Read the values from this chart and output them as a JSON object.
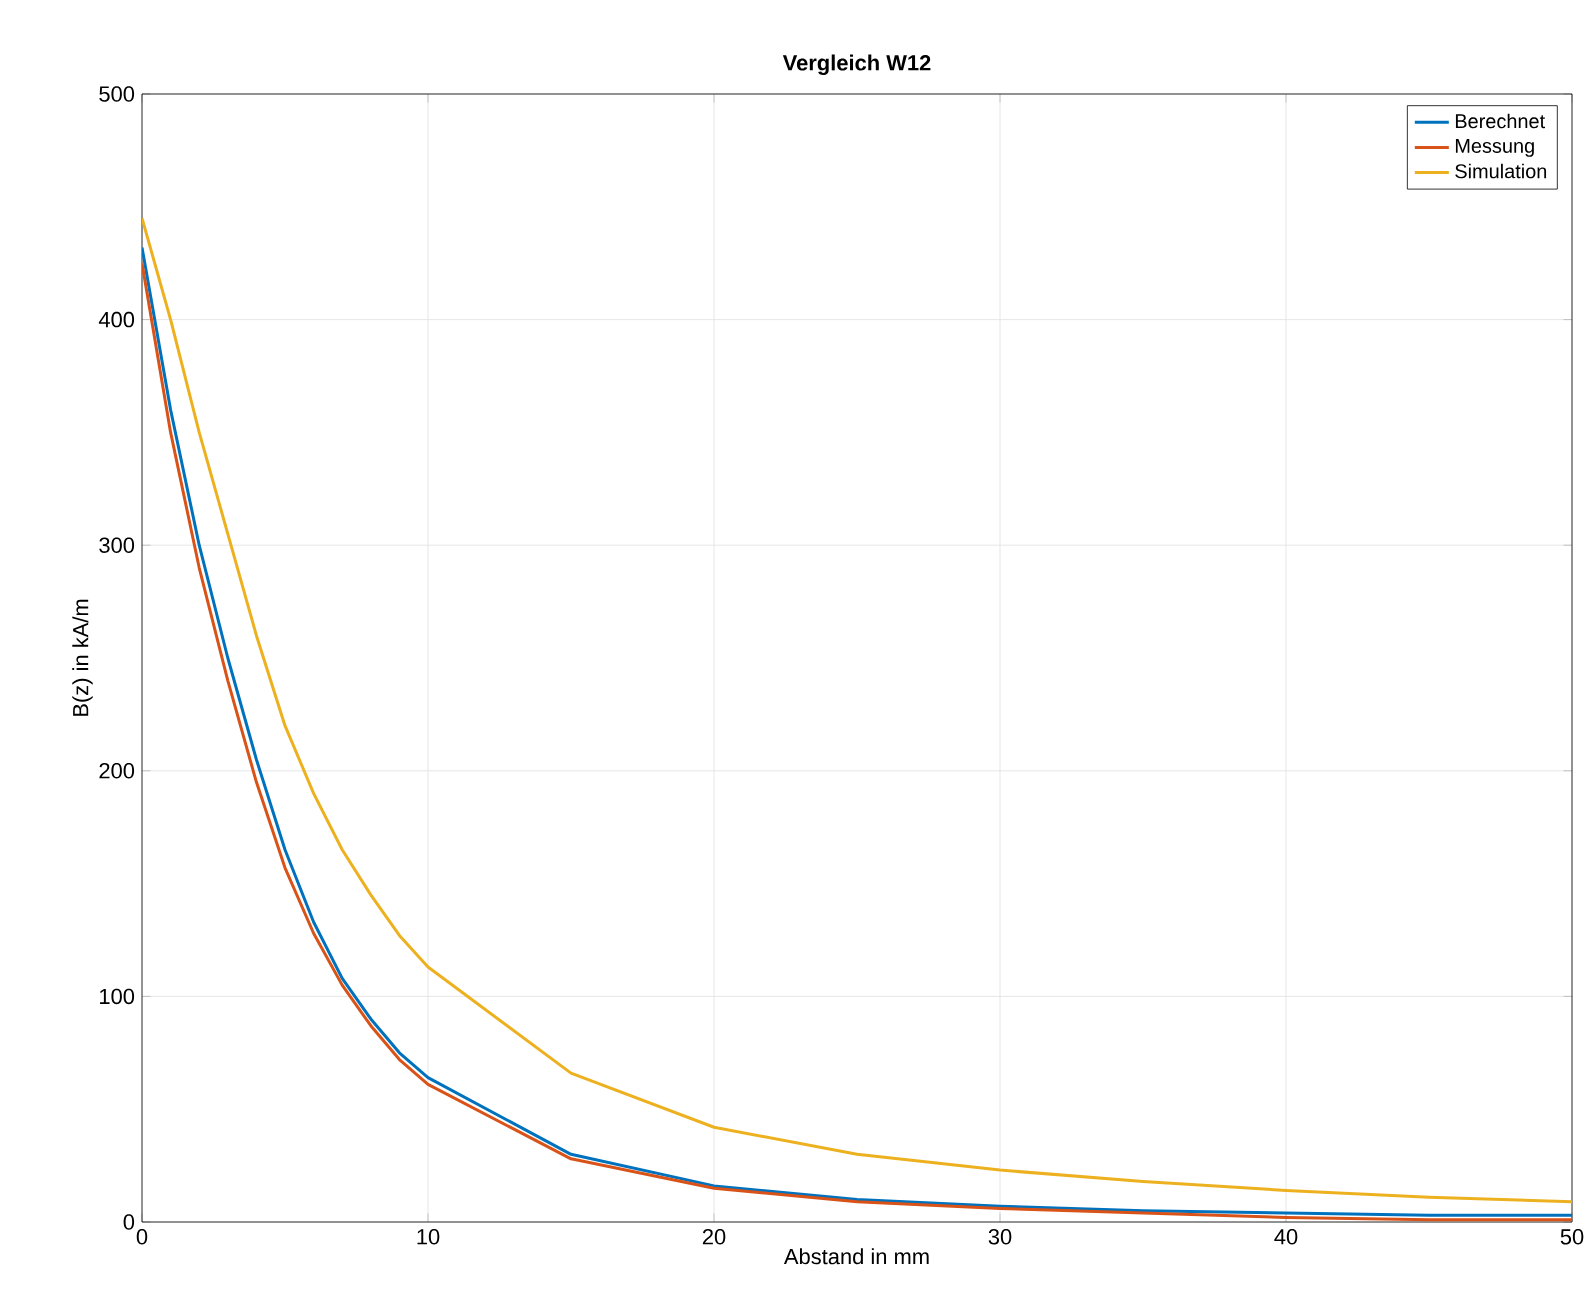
{
  "chart_data": {
    "type": "line",
    "title": "Vergleich W12",
    "xlabel": "Abstand in mm",
    "ylabel": "B(z) in kA/m",
    "x": [
      0,
      1,
      2,
      3,
      4,
      5,
      6,
      7,
      8,
      9,
      10,
      15,
      20,
      25,
      30,
      35,
      40,
      45,
      50
    ],
    "series": [
      {
        "name": "Berechnet",
        "color": "#0072bd",
        "values": [
          432,
          360,
          300,
          250,
          205,
          165,
          133,
          108,
          90,
          75,
          64,
          30,
          16,
          10,
          7,
          5,
          4,
          3,
          3
        ]
      },
      {
        "name": "Messung",
        "color": "#d95319",
        "values": [
          425,
          350,
          290,
          240,
          195,
          157,
          128,
          105,
          87,
          72,
          61,
          28,
          15,
          9,
          6,
          4,
          2,
          1,
          1
        ]
      },
      {
        "name": "Simulation",
        "color": "#edb120",
        "values": [
          445,
          400,
          350,
          305,
          260,
          220,
          190,
          165,
          145,
          127,
          113,
          66,
          42,
          30,
          23,
          18,
          14,
          11,
          9
        ]
      }
    ],
    "xlim": [
      0,
      50
    ],
    "ylim": [
      0,
      500
    ],
    "xticks": [
      0,
      10,
      20,
      30,
      40,
      50
    ],
    "yticks": [
      0,
      100,
      200,
      300,
      400,
      500
    ],
    "grid": true,
    "legend": "top right"
  }
}
